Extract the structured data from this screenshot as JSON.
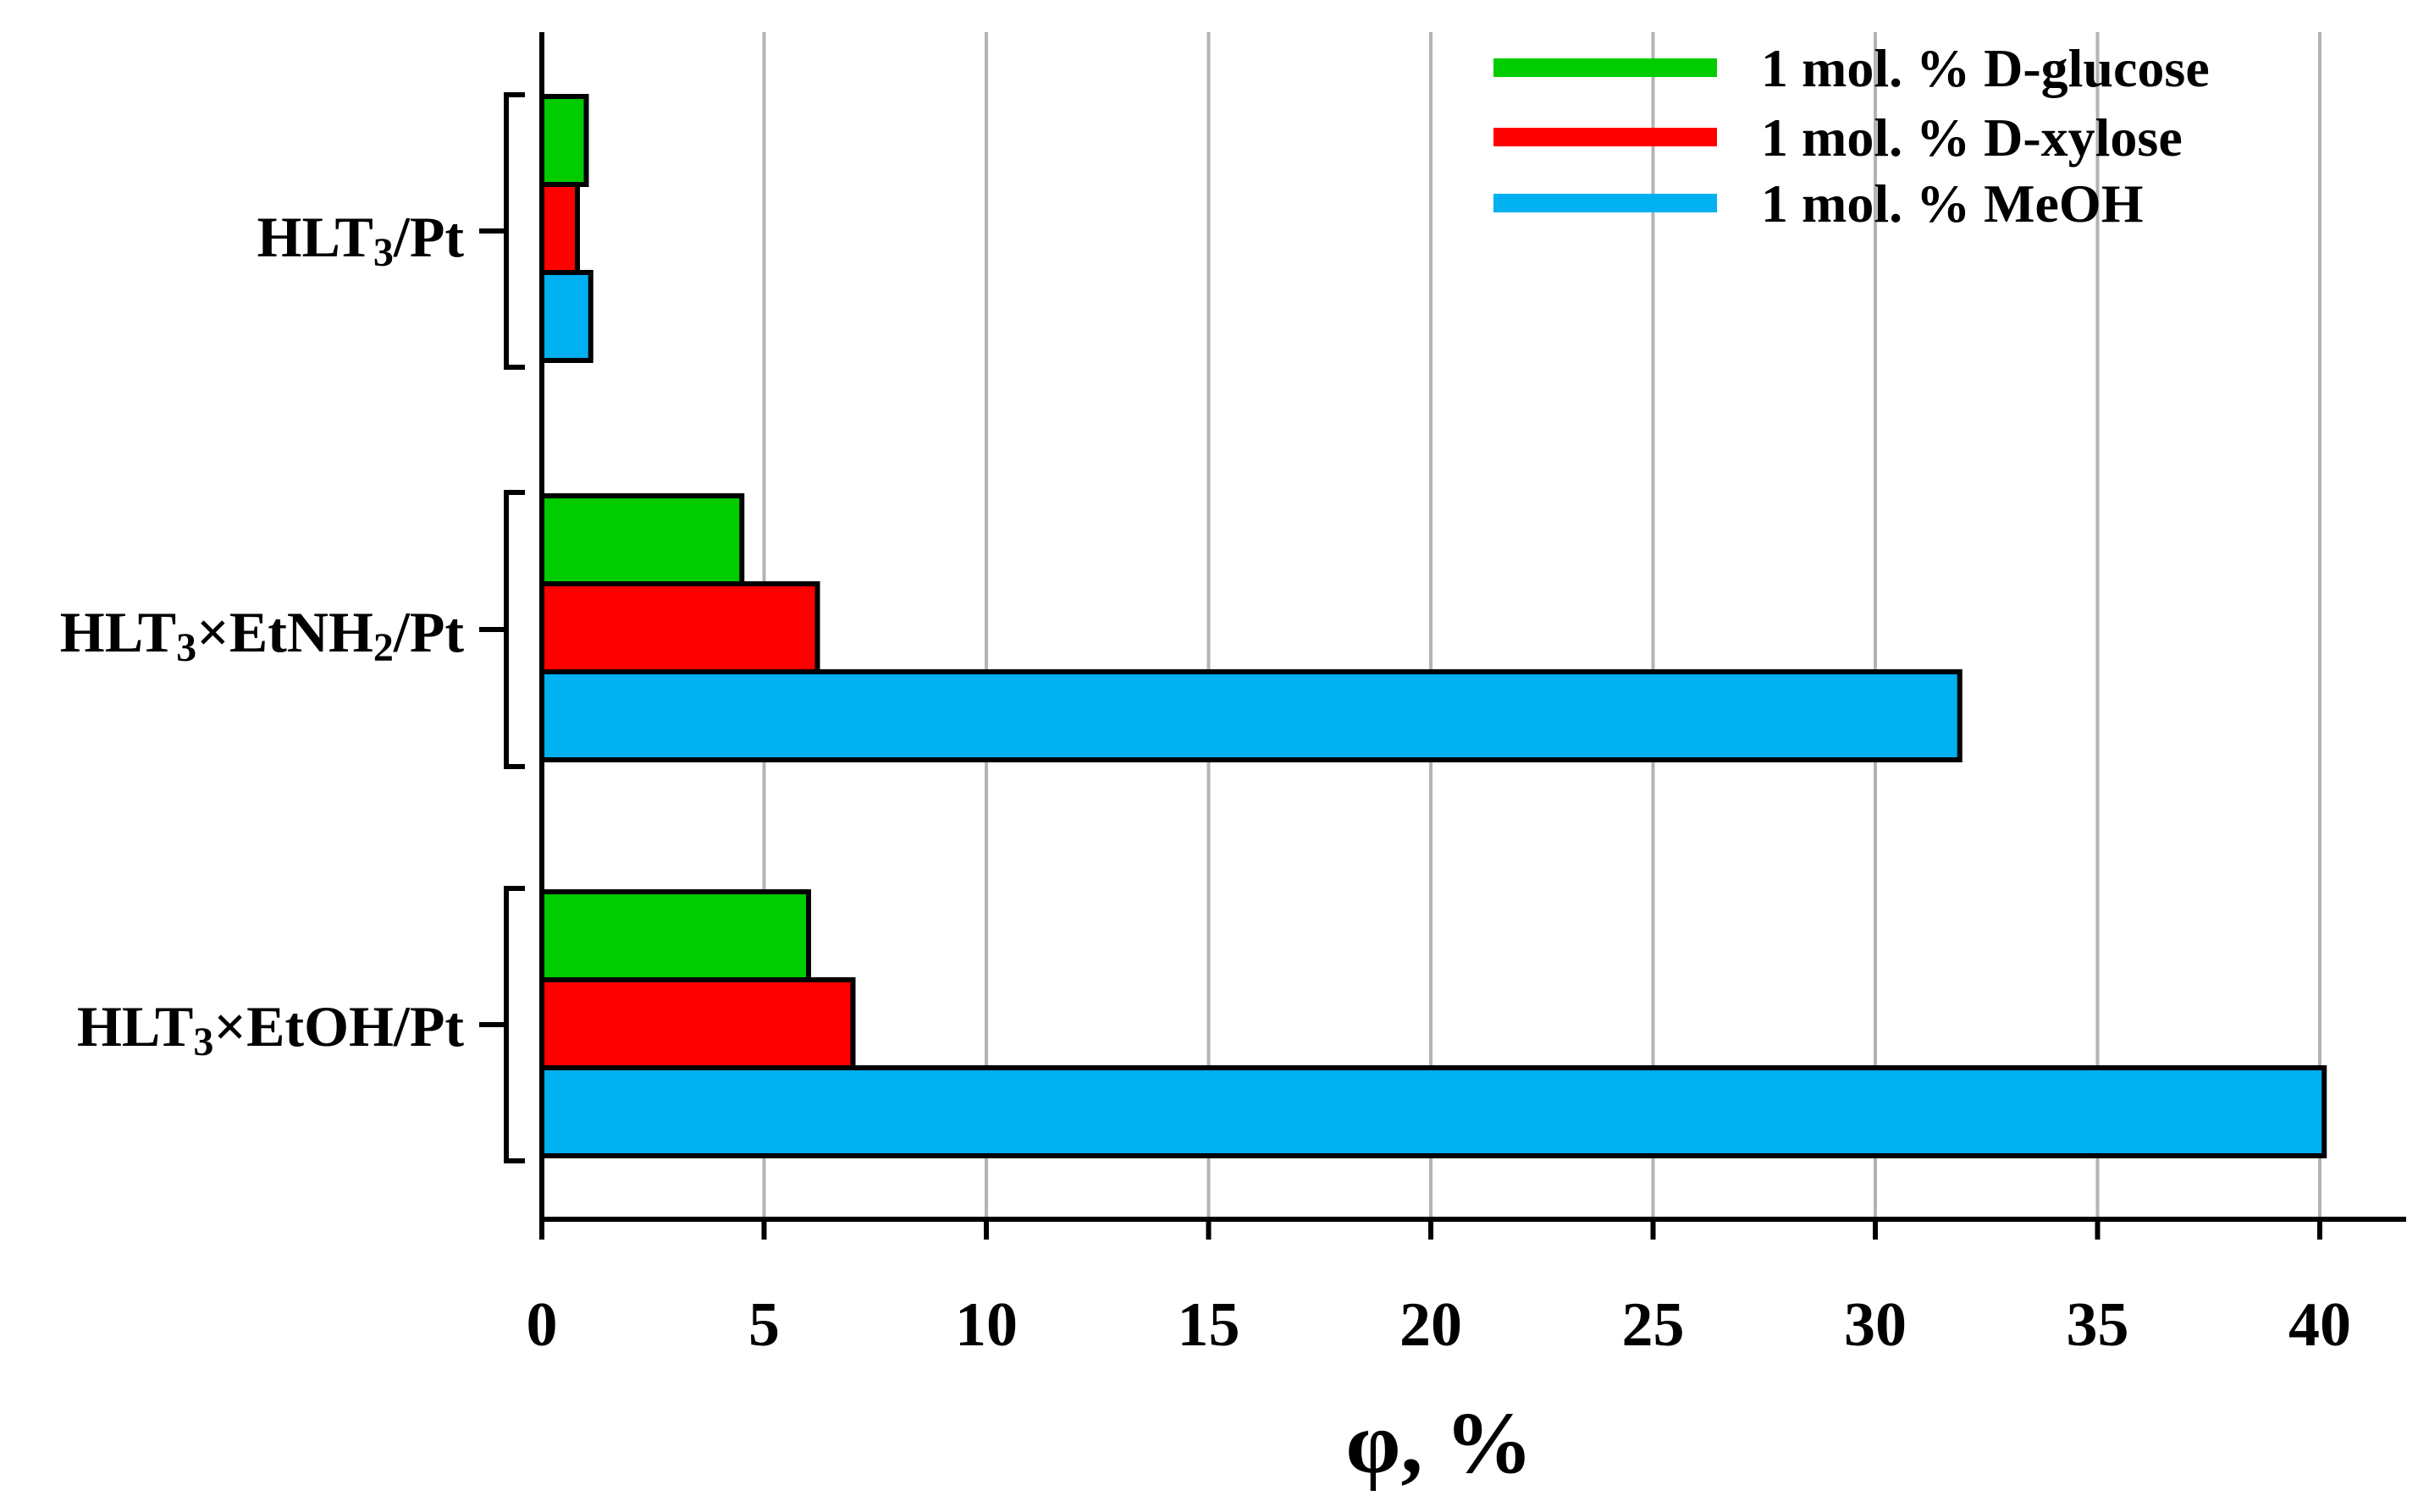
{
  "chart_data": {
    "type": "bar",
    "orientation": "horizontal",
    "xlabel": "φ, %",
    "xlim": [
      0,
      42
    ],
    "xticks": [
      0,
      5,
      10,
      15,
      20,
      25,
      30,
      35,
      40
    ],
    "grid": true,
    "legend_position": "top-right",
    "categories": [
      {
        "name": "HLT₃/Pt",
        "prefix": "HLT",
        "parts": [
          {
            "t": "3",
            "sub": true
          },
          {
            "t": "/Pt",
            "sub": false
          }
        ]
      },
      {
        "name": "HLT₃×EtNH₂/Pt",
        "prefix": "HLT",
        "parts": [
          {
            "t": "3",
            "sub": true
          },
          {
            "t": "×EtNH",
            "sub": false
          },
          {
            "t": "2",
            "sub": true
          },
          {
            "t": "/Pt",
            "sub": false
          }
        ]
      },
      {
        "name": "HLT₃×EtOH/Pt",
        "prefix": "HLT",
        "parts": [
          {
            "t": "3",
            "sub": true
          },
          {
            "t": "×EtOH/Pt",
            "sub": false
          }
        ]
      }
    ],
    "series": [
      {
        "name": "1 mol. % D-glucose",
        "color": "#00cc00",
        "values": [
          1.0,
          4.5,
          6.0
        ]
      },
      {
        "name": "1 mol. % D-xylose",
        "color": "#ff0000",
        "values": [
          0.8,
          6.2,
          7.0
        ]
      },
      {
        "name": "1 mol. % MeOH",
        "color": "#00b0f0",
        "values": [
          1.1,
          31.9,
          40.1
        ]
      }
    ]
  }
}
